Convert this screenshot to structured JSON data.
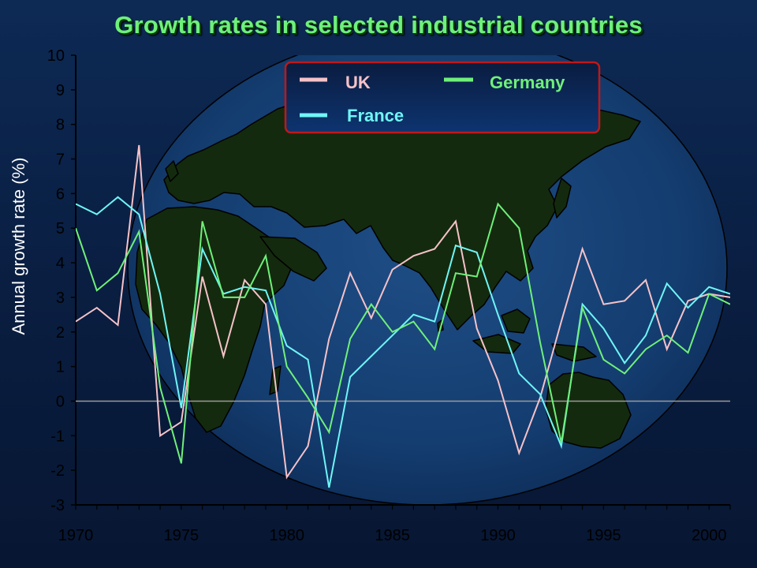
{
  "chart_data": {
    "type": "line",
    "title": "Growth rates in selected industrial countries",
    "ylabel": "Annual growth rate (%)",
    "xlabel": "",
    "xlim": [
      1970,
      2001
    ],
    "ylim": [
      -3,
      10
    ],
    "x_ticks": [
      "1970",
      "1975",
      "1980",
      "1985",
      "1990",
      "1995",
      "2000"
    ],
    "y_ticks": [
      "10",
      "9",
      "8",
      "7",
      "6",
      "5",
      "4",
      "3",
      "2",
      "1",
      "0",
      "-1",
      "-2",
      "-3"
    ],
    "legend_position": "top-center",
    "background_image": "world-map-globe",
    "x": [
      1970,
      1971,
      1972,
      1973,
      1974,
      1975,
      1976,
      1977,
      1978,
      1979,
      1980,
      1981,
      1982,
      1983,
      1984,
      1985,
      1986,
      1987,
      1988,
      1989,
      1990,
      1991,
      1992,
      1993,
      1994,
      1995,
      1996,
      1997,
      1998,
      1999,
      2000,
      2001
    ],
    "series": [
      {
        "name": "UK",
        "color": "#f5c2c8",
        "values": [
          2.3,
          2.7,
          2.2,
          7.4,
          -1.0,
          -0.6,
          3.6,
          1.3,
          3.5,
          2.8,
          -2.2,
          -1.3,
          1.8,
          3.7,
          2.4,
          3.8,
          4.2,
          4.4,
          5.2,
          2.1,
          0.6,
          -1.5,
          0.1,
          2.3,
          4.4,
          2.8,
          2.9,
          3.5,
          1.5,
          2.9,
          3.1,
          3.0
        ]
      },
      {
        "name": "France",
        "color": "#6ff5f5",
        "values": [
          5.7,
          5.4,
          5.9,
          5.4,
          3.1,
          -0.2,
          4.4,
          3.1,
          3.3,
          3.2,
          1.6,
          1.2,
          -2.5,
          0.7,
          1.3,
          1.9,
          2.5,
          2.3,
          4.5,
          4.3,
          2.5,
          0.8,
          0.2,
          -1.3,
          2.8,
          2.1,
          1.1,
          1.9,
          3.4,
          2.7,
          3.3,
          3.1
        ]
      },
      {
        "name": "Germany",
        "color": "#6ff07a",
        "values": [
          5.0,
          3.2,
          3.7,
          4.9,
          0.4,
          -1.8,
          5.2,
          3.0,
          3.0,
          4.2,
          1.0,
          0.1,
          -0.9,
          1.8,
          2.8,
          2.0,
          2.3,
          1.5,
          3.7,
          3.6,
          5.7,
          5.0,
          1.7,
          -1.2,
          2.7,
          1.2,
          0.8,
          1.5,
          1.9,
          1.4,
          3.1,
          2.8
        ]
      }
    ]
  }
}
